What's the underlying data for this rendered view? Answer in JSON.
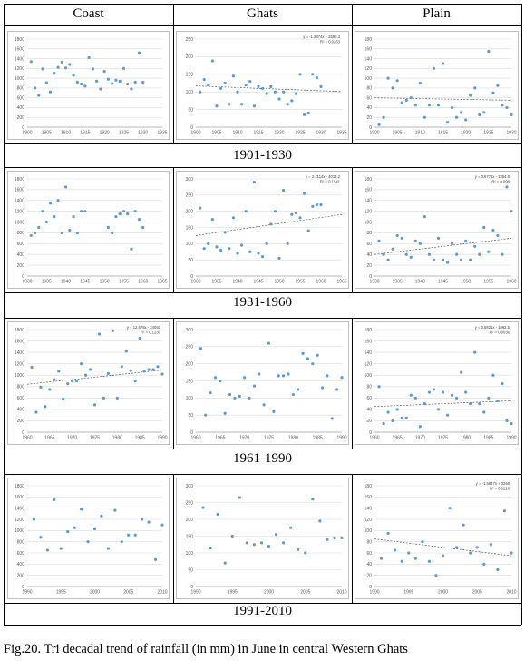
{
  "headers": [
    "Coast",
    "Ghats",
    "Plain"
  ],
  "periods": [
    "1901-1930",
    "1931-1960",
    "1961-1990",
    "1991-2010"
  ],
  "caption": "Fig.20. Tri decadal trend of rainfall (in mm) in June in central Western Ghats",
  "colors": {
    "point": "#5b9bd5",
    "trend": "#5a5a5a",
    "grid": "#d9d9d9",
    "border": "#bfbfbf"
  },
  "chart_data": [
    {
      "id": "coast-1901",
      "type": "scatter",
      "period": "1901-1930",
      "region": "Coast",
      "xlim": [
        1900,
        1935
      ],
      "ylim": [
        0,
        1800
      ],
      "xticks": [
        1900,
        1905,
        1910,
        1915,
        1920,
        1925,
        1930,
        1935
      ],
      "yticks": [
        0,
        200,
        400,
        600,
        800,
        1000,
        1200,
        1400,
        1600,
        1800
      ],
      "x": [
        1901,
        1902,
        1903,
        1904,
        1905,
        1906,
        1907,
        1908,
        1909,
        1910,
        1911,
        1912,
        1913,
        1914,
        1915,
        1916,
        1917,
        1918,
        1919,
        1920,
        1921,
        1922,
        1923,
        1924,
        1925,
        1926,
        1927,
        1928,
        1929,
        1930
      ],
      "y": [
        1340,
        800,
        650,
        1190,
        910,
        720,
        1100,
        1220,
        1330,
        1210,
        1280,
        1060,
        920,
        880,
        840,
        1420,
        1190,
        940,
        780,
        1140,
        980,
        890,
        960,
        940,
        1200,
        880,
        780,
        920,
        1520,
        920
      ],
      "trend": null,
      "equation": "",
      "r2": ""
    },
    {
      "id": "ghats-1901",
      "type": "scatter",
      "period": "1901-1930",
      "region": "Ghats",
      "xlim": [
        1900,
        1935
      ],
      "ylim": [
        0,
        250
      ],
      "xticks": [
        1900,
        1905,
        1910,
        1915,
        1920,
        1925,
        1930,
        1935
      ],
      "yticks": [
        0,
        50,
        100,
        150,
        200,
        250
      ],
      "x": [
        1901,
        1902,
        1903,
        1904,
        1905,
        1906,
        1907,
        1908,
        1909,
        1910,
        1911,
        1912,
        1913,
        1914,
        1915,
        1916,
        1917,
        1918,
        1919,
        1920,
        1921,
        1922,
        1923,
        1924,
        1925,
        1926,
        1927,
        1928,
        1929,
        1930
      ],
      "y": [
        100,
        135,
        120,
        188,
        60,
        110,
        125,
        65,
        145,
        100,
        65,
        120,
        130,
        60,
        115,
        110,
        95,
        115,
        100,
        80,
        100,
        65,
        75,
        95,
        150,
        35,
        40,
        150,
        140,
        115
      ],
      "trend": [
        117,
        101
      ],
      "equation": "y = -1.2374x + 2590.3",
      "r2": "R² = 0.0263"
    },
    {
      "id": "plain-1901",
      "type": "scatter",
      "period": "1901-1930",
      "region": "Plain",
      "xlim": [
        1900,
        1930
      ],
      "ylim": [
        0,
        180
      ],
      "xticks": [
        1900,
        1905,
        1910,
        1915,
        1920,
        1925,
        1930
      ],
      "yticks": [
        0,
        20,
        40,
        60,
        80,
        100,
        120,
        140,
        160,
        180
      ],
      "x": [
        1901,
        1902,
        1903,
        1904,
        1905,
        1906,
        1907,
        1908,
        1909,
        1910,
        1911,
        1912,
        1913,
        1914,
        1915,
        1916,
        1917,
        1918,
        1919,
        1920,
        1921,
        1922,
        1923,
        1924,
        1925,
        1926,
        1927,
        1928,
        1929,
        1930
      ],
      "y": [
        5,
        20,
        100,
        80,
        95,
        50,
        55,
        60,
        45,
        90,
        20,
        45,
        120,
        45,
        130,
        10,
        40,
        20,
        30,
        15,
        65,
        80,
        25,
        30,
        155,
        70,
        85,
        45,
        40,
        25
      ],
      "trend": [
        60,
        55
      ],
      "equation": "",
      "r2": ""
    },
    {
      "id": "coast-1931",
      "type": "scatter",
      "period": "1931-1960",
      "region": "Coast",
      "xlim": [
        1930,
        1965
      ],
      "ylim": [
        0,
        1800
      ],
      "xticks": [
        1930,
        1935,
        1940,
        1945,
        1950,
        1955,
        1960,
        1965
      ],
      "yticks": [
        0,
        200,
        400,
        600,
        800,
        1000,
        1200,
        1400,
        1600,
        1800
      ],
      "x": [
        1931,
        1932,
        1933,
        1934,
        1935,
        1936,
        1937,
        1938,
        1939,
        1940,
        1941,
        1942,
        1943,
        1944,
        1945,
        1951,
        1952,
        1953,
        1954,
        1955,
        1956,
        1957,
        1958,
        1959,
        1960
      ],
      "y": [
        750,
        800,
        900,
        1200,
        1000,
        1350,
        1100,
        1400,
        800,
        1650,
        850,
        1100,
        800,
        1200,
        1200,
        900,
        800,
        1100,
        1150,
        1200,
        1150,
        500,
        1200,
        1050,
        900
      ],
      "trend": null,
      "equation": "",
      "r2": ""
    },
    {
      "id": "ghats-1931",
      "type": "scatter",
      "period": "1931-1960",
      "region": "Ghats",
      "xlim": [
        1930,
        1965
      ],
      "ylim": [
        0,
        300
      ],
      "xticks": [
        1930,
        1935,
        1940,
        1945,
        1950,
        1955,
        1960,
        1965
      ],
      "yticks": [
        0,
        50,
        100,
        150,
        200,
        250,
        300
      ],
      "x": [
        1931,
        1932,
        1933,
        1934,
        1935,
        1936,
        1937,
        1938,
        1939,
        1940,
        1941,
        1942,
        1943,
        1944,
        1945,
        1946,
        1947,
        1948,
        1949,
        1950,
        1951,
        1952,
        1953,
        1954,
        1955,
        1956,
        1957,
        1958,
        1959,
        1960
      ],
      "y": [
        210,
        85,
        100,
        175,
        90,
        80,
        135,
        85,
        180,
        70,
        95,
        200,
        75,
        290,
        70,
        60,
        100,
        160,
        200,
        55,
        265,
        100,
        190,
        195,
        180,
        255,
        140,
        215,
        220,
        220
      ],
      "trend": [
        125,
        190
      ],
      "equation": "y = 2.2114x - 4013.2",
      "r2": "R² = 0.1541"
    },
    {
      "id": "plain-1931",
      "type": "scatter",
      "period": "1931-1960",
      "region": "Plain",
      "xlim": [
        1930,
        1960
      ],
      "ylim": [
        0,
        180
      ],
      "xticks": [
        1930,
        1935,
        1940,
        1945,
        1950,
        1955,
        1960
      ],
      "yticks": [
        0,
        20,
        40,
        60,
        80,
        100,
        120,
        140,
        160,
        180
      ],
      "x": [
        1931,
        1932,
        1933,
        1934,
        1935,
        1936,
        1937,
        1938,
        1939,
        1940,
        1941,
        1942,
        1943,
        1944,
        1945,
        1946,
        1947,
        1948,
        1949,
        1950,
        1951,
        1952,
        1953,
        1954,
        1955,
        1956,
        1957,
        1958,
        1959,
        1960
      ],
      "y": [
        65,
        40,
        30,
        50,
        75,
        70,
        40,
        35,
        65,
        60,
        110,
        40,
        30,
        70,
        30,
        25,
        60,
        40,
        30,
        65,
        30,
        55,
        40,
        90,
        45,
        85,
        75,
        40,
        165,
        120
      ],
      "trend": [
        40,
        70
      ],
      "equation": "y = 0.9771x - 1854.8",
      "r2": "R² = 0.096"
    },
    {
      "id": "coast-1961",
      "type": "scatter",
      "period": "1961-1990",
      "region": "Coast",
      "xlim": [
        1960,
        1990
      ],
      "ylim": [
        0,
        1800
      ],
      "xticks": [
        1960,
        1965,
        1970,
        1975,
        1980,
        1985,
        1990
      ],
      "yticks": [
        0,
        200,
        400,
        600,
        800,
        1000,
        1200,
        1400,
        1600,
        1800
      ],
      "x": [
        1961,
        1962,
        1963,
        1964,
        1965,
        1966,
        1967,
        1968,
        1969,
        1970,
        1971,
        1972,
        1973,
        1974,
        1975,
        1976,
        1977,
        1978,
        1979,
        1980,
        1981,
        1982,
        1983,
        1984,
        1985,
        1986,
        1987,
        1988,
        1989,
        1990
      ],
      "y": [
        1140,
        350,
        790,
        450,
        750,
        920,
        1070,
        580,
        850,
        900,
        900,
        1200,
        1000,
        1100,
        480,
        1720,
        600,
        1030,
        1780,
        600,
        1150,
        1420,
        1080,
        900,
        1650,
        1070,
        1100,
        1100,
        1150,
        1020
      ],
      "trend": [
        840,
        1090
      ],
      "equation": "y = 12.678x - 24050",
      "r2": "R² = 0.1230"
    },
    {
      "id": "ghats-1961",
      "type": "scatter",
      "period": "1961-1990",
      "region": "Ghats",
      "xlim": [
        1960,
        1990
      ],
      "ylim": [
        0,
        300
      ],
      "xticks": [
        1960,
        1965,
        1970,
        1975,
        1980,
        1985,
        1990
      ],
      "yticks": [
        0,
        50,
        100,
        150,
        200,
        250,
        300
      ],
      "x": [
        1961,
        1962,
        1963,
        1964,
        1965,
        1966,
        1967,
        1968,
        1969,
        1970,
        1971,
        1972,
        1973,
        1974,
        1975,
        1976,
        1977,
        1978,
        1979,
        1980,
        1981,
        1982,
        1983,
        1984,
        1985,
        1986,
        1987,
        1988,
        1989,
        1990
      ],
      "y": [
        245,
        50,
        115,
        160,
        150,
        55,
        110,
        100,
        105,
        160,
        100,
        135,
        170,
        80,
        260,
        60,
        165,
        165,
        170,
        110,
        125,
        230,
        215,
        200,
        225,
        130,
        165,
        40,
        125,
        160
      ],
      "trend": null,
      "equation": "",
      "r2": ""
    },
    {
      "id": "plain-1961",
      "type": "scatter",
      "period": "1961-1990",
      "region": "Plain",
      "xlim": [
        1960,
        1990
      ],
      "ylim": [
        0,
        180
      ],
      "xticks": [
        1960,
        1965,
        1970,
        1975,
        1980,
        1985,
        1990
      ],
      "yticks": [
        0,
        20,
        40,
        60,
        80,
        100,
        120,
        140,
        160,
        180
      ],
      "x": [
        1961,
        1962,
        1963,
        1964,
        1965,
        1966,
        1967,
        1968,
        1969,
        1970,
        1971,
        1972,
        1973,
        1974,
        1975,
        1976,
        1977,
        1978,
        1979,
        1980,
        1981,
        1982,
        1983,
        1984,
        1985,
        1986,
        1987,
        1988,
        1989,
        1990
      ],
      "y": [
        80,
        15,
        35,
        20,
        40,
        25,
        25,
        65,
        60,
        10,
        50,
        70,
        75,
        40,
        70,
        30,
        65,
        60,
        105,
        70,
        50,
        140,
        50,
        35,
        60,
        100,
        55,
        85,
        20,
        15
      ],
      "trend": [
        45,
        55
      ],
      "equation": "y = 0.5821x - 1092.5",
      "r2": "R² = 0.0036"
    },
    {
      "id": "coast-1991",
      "type": "scatter",
      "period": "1991-2010",
      "region": "Coast",
      "xlim": [
        1990,
        2010
      ],
      "ylim": [
        0,
        1800
      ],
      "xticks": [
        1990,
        1995,
        2000,
        2005,
        2010
      ],
      "yticks": [
        0,
        200,
        400,
        600,
        800,
        1000,
        1200,
        1400,
        1600,
        1800
      ],
      "x": [
        1991,
        1992,
        1993,
        1994,
        1995,
        1996,
        1997,
        1998,
        1999,
        2000,
        2001,
        2002,
        2003,
        2004,
        2005,
        2006,
        2007,
        2008,
        2009,
        2010
      ],
      "y": [
        1200,
        880,
        650,
        1550,
        680,
        980,
        1050,
        1380,
        800,
        1030,
        1260,
        680,
        1360,
        800,
        920,
        920,
        1200,
        1150,
        480,
        1100
      ],
      "trend": null,
      "equation": "",
      "r2": ""
    },
    {
      "id": "ghats-1991",
      "type": "scatter",
      "period": "1991-2010",
      "region": "Ghats",
      "xlim": [
        1990,
        2010
      ],
      "ylim": [
        0,
        300
      ],
      "xticks": [
        1990,
        1995,
        2000,
        2005,
        2010
      ],
      "yticks": [
        0,
        50,
        100,
        150,
        200,
        250,
        300
      ],
      "x": [
        1991,
        1992,
        1993,
        1994,
        1995,
        1996,
        1997,
        1998,
        1999,
        2000,
        2001,
        2002,
        2003,
        2004,
        2005,
        2006,
        2007,
        2008,
        2009,
        2010
      ],
      "y": [
        235,
        115,
        215,
        70,
        150,
        265,
        130,
        125,
        130,
        120,
        155,
        130,
        175,
        110,
        100,
        260,
        195,
        140,
        145,
        145
      ],
      "trend": null,
      "equation": "",
      "r2": ""
    },
    {
      "id": "plain-1991",
      "type": "scatter",
      "period": "1991-2010",
      "region": "Plain",
      "xlim": [
        1990,
        2010
      ],
      "ylim": [
        0,
        180
      ],
      "xticks": [
        1990,
        1995,
        2000,
        2005,
        2010
      ],
      "yticks": [
        0,
        20,
        40,
        60,
        80,
        100,
        120,
        140,
        160,
        180
      ],
      "x": [
        1991,
        1992,
        1993,
        1994,
        1995,
        1996,
        1997,
        1998,
        1999,
        2000,
        2001,
        2002,
        2003,
        2004,
        2005,
        2006,
        2007,
        2008,
        2009,
        2010
      ],
      "y": [
        50,
        95,
        65,
        45,
        60,
        50,
        80,
        45,
        20,
        55,
        140,
        70,
        110,
        60,
        70,
        40,
        75,
        30,
        135,
        60
      ],
      "trend": [
        85,
        55
      ],
      "equation": "y = -1.5847x + 3266",
      "r2": "R² = 0.0226"
    }
  ]
}
